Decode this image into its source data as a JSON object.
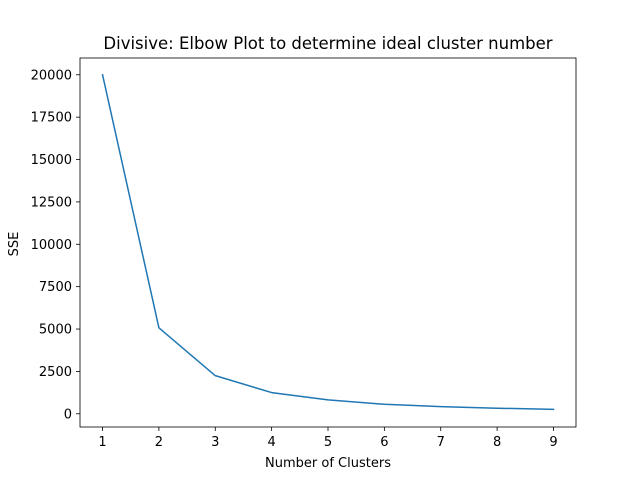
{
  "chart_data": {
    "type": "line",
    "title": "Divisive: Elbow Plot to determine ideal cluster number",
    "xlabel": "Number of Clusters",
    "ylabel": "SSE",
    "x": [
      1,
      2,
      3,
      4,
      5,
      6,
      7,
      8,
      9
    ],
    "series": [
      {
        "values": [
          20000,
          5070,
          2250,
          1250,
          820,
          560,
          420,
          330,
          260
        ]
      }
    ],
    "xlim": [
      0.6,
      9.4
    ],
    "ylim": [
      -780,
      20990
    ],
    "xticks": [
      1,
      2,
      3,
      4,
      5,
      6,
      7,
      8,
      9
    ],
    "yticks": [
      0,
      2500,
      5000,
      7500,
      10000,
      12500,
      15000,
      17500,
      20000
    ],
    "grid": false,
    "line_color": "#1f77b4"
  }
}
